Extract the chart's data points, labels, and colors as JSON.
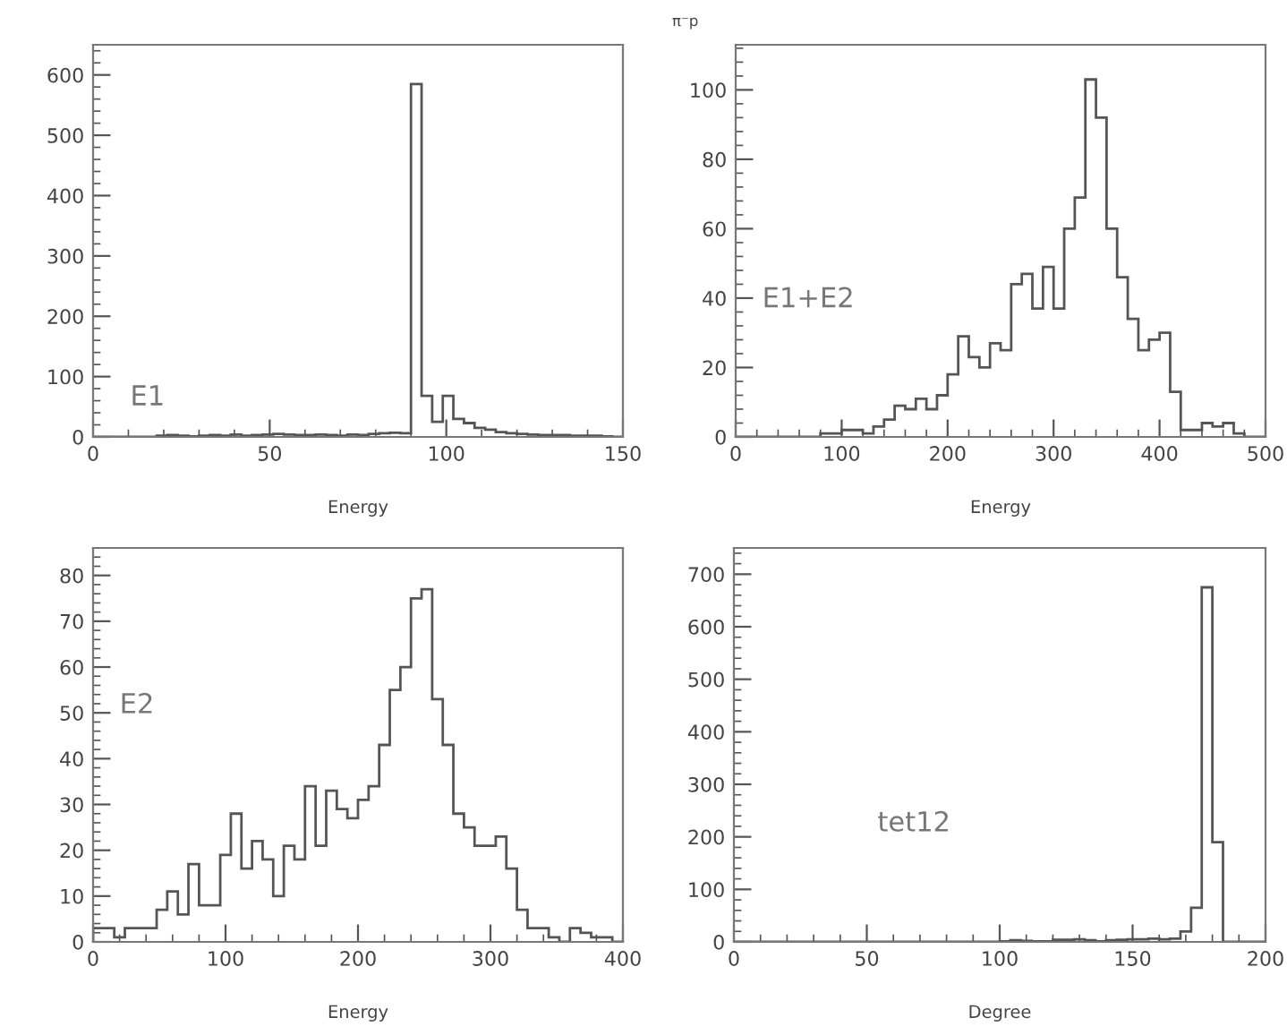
{
  "chart_data": [
    {
      "type": "histogram",
      "xlabel": "Energy",
      "annotations": [
        "E1"
      ],
      "color": "#555555",
      "xlim": [
        0,
        150
      ],
      "ylim": [
        0,
        650
      ],
      "xticks": [
        0,
        50,
        100,
        150
      ],
      "yticks": [
        0,
        100,
        200,
        300,
        400,
        500,
        600
      ],
      "grid": false,
      "bins": [
        0,
        3,
        6,
        9,
        12,
        15,
        18,
        21,
        24,
        27,
        30,
        33,
        36,
        39,
        42,
        45,
        48,
        51,
        54,
        57,
        60,
        63,
        66,
        69,
        72,
        75,
        78,
        81,
        84,
        87,
        90,
        93,
        96,
        99,
        102,
        105,
        108,
        111,
        114,
        117,
        120,
        123,
        126,
        129,
        132,
        135,
        138,
        141,
        144,
        147,
        150
      ],
      "values": [
        0,
        0,
        0,
        0,
        0,
        0,
        2,
        3,
        2,
        1,
        2,
        3,
        2,
        4,
        2,
        3,
        4,
        5,
        4,
        3,
        3,
        4,
        3,
        2,
        4,
        3,
        5,
        6,
        7,
        6,
        585,
        68,
        25,
        68,
        30,
        23,
        15,
        12,
        8,
        6,
        5,
        4,
        3,
        3,
        3,
        2,
        2,
        2,
        1,
        0
      ]
    },
    {
      "type": "histogram",
      "title": "π⁻p",
      "xlabel": "Energy",
      "annotations": [
        "E1+E2"
      ],
      "color": "#555555",
      "xlim": [
        0,
        500
      ],
      "ylim": [
        0,
        113
      ],
      "xticks": [
        0,
        100,
        200,
        300,
        400,
        500
      ],
      "yticks": [
        0,
        20,
        40,
        60,
        80,
        100
      ],
      "grid": false,
      "bins": [
        0,
        10,
        20,
        30,
        40,
        50,
        60,
        70,
        80,
        90,
        100,
        110,
        120,
        130,
        140,
        150,
        160,
        170,
        180,
        190,
        200,
        210,
        220,
        230,
        240,
        250,
        260,
        270,
        280,
        290,
        300,
        310,
        320,
        330,
        340,
        350,
        360,
        370,
        380,
        390,
        400,
        410,
        420,
        430,
        440,
        450,
        460,
        470,
        480,
        490,
        500
      ],
      "values": [
        0,
        0,
        0,
        0,
        0,
        0,
        0,
        0,
        1,
        1,
        2,
        2,
        1,
        3,
        5,
        9,
        8,
        11,
        8,
        12,
        18,
        29,
        23,
        20,
        27,
        25,
        44,
        47,
        37,
        49,
        37,
        60,
        69,
        103,
        92,
        60,
        46,
        34,
        25,
        28,
        30,
        13,
        2,
        2,
        4,
        3,
        4,
        1,
        0,
        0
      ]
    },
    {
      "type": "histogram",
      "xlabel": "Energy",
      "annotations": [
        "E2"
      ],
      "color": "#555555",
      "xlim": [
        0,
        400
      ],
      "ylim": [
        0,
        86
      ],
      "xticks": [
        0,
        100,
        200,
        300,
        400
      ],
      "yticks": [
        0,
        10,
        20,
        30,
        40,
        50,
        60,
        70,
        80
      ],
      "grid": false,
      "bins": [
        0,
        8,
        16,
        24,
        32,
        40,
        48,
        56,
        64,
        72,
        80,
        88,
        96,
        104,
        112,
        120,
        128,
        136,
        144,
        152,
        160,
        168,
        176,
        184,
        192,
        200,
        208,
        216,
        224,
        232,
        240,
        248,
        256,
        264,
        272,
        280,
        288,
        296,
        304,
        312,
        320,
        328,
        336,
        344,
        352,
        360,
        368,
        376,
        384,
        392,
        400
      ],
      "values": [
        3,
        3,
        1,
        3,
        3,
        3,
        7,
        11,
        6,
        17,
        8,
        8,
        19,
        28,
        16,
        22,
        18,
        10,
        21,
        18,
        34,
        21,
        33,
        29,
        27,
        31,
        34,
        43,
        55,
        60,
        75,
        77,
        53,
        43,
        28,
        25,
        21,
        21,
        23,
        16,
        7,
        3,
        3,
        1,
        0,
        3,
        2,
        1,
        1,
        0
      ]
    },
    {
      "type": "histogram",
      "xlabel": "Degree",
      "annotations": [
        "tet12"
      ],
      "color": "#555555",
      "xlim": [
        0,
        200
      ],
      "ylim": [
        0,
        750
      ],
      "xticks": [
        0,
        50,
        100,
        150,
        200
      ],
      "yticks": [
        0,
        100,
        200,
        300,
        400,
        500,
        600,
        700
      ],
      "grid": false,
      "bins": [
        0,
        4,
        8,
        12,
        16,
        20,
        24,
        28,
        32,
        36,
        40,
        44,
        48,
        52,
        56,
        60,
        64,
        68,
        72,
        76,
        80,
        84,
        88,
        92,
        96,
        100,
        104,
        108,
        112,
        116,
        120,
        124,
        128,
        132,
        136,
        140,
        144,
        148,
        152,
        156,
        160,
        164,
        168,
        172,
        176,
        180,
        184,
        188,
        192,
        196,
        200
      ],
      "values": [
        0,
        0,
        0,
        0,
        0,
        0,
        0,
        0,
        0,
        0,
        0,
        0,
        0,
        0,
        0,
        0,
        0,
        0,
        0,
        0,
        0,
        0,
        0,
        0,
        0,
        1,
        3,
        2,
        1,
        1,
        4,
        4,
        5,
        3,
        1,
        3,
        4,
        5,
        5,
        6,
        5,
        6,
        20,
        65,
        675,
        190,
        0,
        0,
        0,
        0
      ]
    }
  ]
}
